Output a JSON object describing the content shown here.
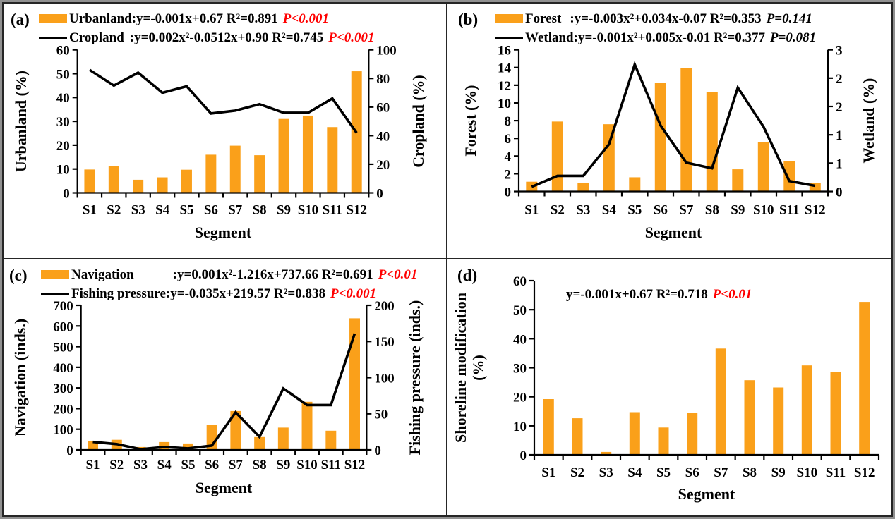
{
  "colors": {
    "bar": "#FAA01A",
    "line": "#000000",
    "red": "#FF0000",
    "black": "#000000"
  },
  "chart_data": [
    {
      "id": "a",
      "panel_label": "(a)",
      "type": "bar+line",
      "categories": [
        "S1",
        "S2",
        "S3",
        "S4",
        "S5",
        "S6",
        "S7",
        "S8",
        "S9",
        "S10",
        "S11",
        "S12"
      ],
      "xlabel": "Segment",
      "left_axis": {
        "label": "Urbanland (%)",
        "min": 0,
        "max": 60,
        "ticks": [
          0,
          10,
          20,
          30,
          40,
          50,
          60
        ]
      },
      "right_axis": {
        "label": "Cropland (%)",
        "min": 0,
        "max": 100,
        "ticks": [
          0,
          20,
          40,
          60,
          80,
          100
        ]
      },
      "legend": [
        {
          "swatch": "bar",
          "label": "Urbanland",
          "indent": 0,
          "equation": ":y=-0.001x+0.67 R²=0.891",
          "p": "P<0.001",
          "p_color": "#FF0000"
        },
        {
          "swatch": "line",
          "label": "Cropland",
          "indent": 8,
          "equation": ":y=0.002x²-0.0512x+0.90 R²=0.745",
          "p": "P<0.001",
          "p_color": "#FF0000"
        }
      ],
      "series": [
        {
          "name": "Urbanland",
          "type": "bar",
          "axis": "left",
          "values": [
            9.8,
            11.2,
            5.5,
            6.5,
            9.7,
            16.0,
            19.8,
            15.8,
            31.0,
            32.4,
            27.6,
            51.0
          ]
        },
        {
          "name": "Cropland",
          "type": "line",
          "axis": "right",
          "values": [
            86,
            75,
            84,
            70,
            74.5,
            55.5,
            57.5,
            62,
            56,
            56,
            66,
            42
          ]
        }
      ]
    },
    {
      "id": "b",
      "panel_label": "(b)",
      "type": "bar+line",
      "categories": [
        "S1",
        "S2",
        "S3",
        "S4",
        "S5",
        "S6",
        "S7",
        "S8",
        "S9",
        "S10",
        "S11",
        "S12"
      ],
      "xlabel": "Segment",
      "left_axis": {
        "label": "Forest (%)",
        "min": 0,
        "max": 16,
        "ticks": [
          0,
          2,
          4,
          6,
          8,
          10,
          12,
          14,
          16
        ]
      },
      "right_axis": {
        "label": "Wetland (%)",
        "min": 0,
        "max": 3,
        "ticks": [
          0,
          0.6,
          1.2,
          1.8,
          2.4,
          3.0
        ],
        "tick_labels": [
          "0",
          "1",
          "1",
          "2",
          "2",
          "3"
        ]
      },
      "legend": [
        {
          "swatch": "bar",
          "label": "Forest",
          "indent": 12,
          "equation": ":y=-0.003x²+0.034x-0.07 R²=0.353",
          "p": "P=0.141",
          "p_color": "#000000"
        },
        {
          "swatch": "line",
          "label": "Wetland",
          "indent": 0,
          "equation": ":y=-0.001x²+0.005x-0.01 R²=0.377",
          "p": "P=0.081",
          "p_color": "#000000"
        }
      ],
      "series": [
        {
          "name": "Forest",
          "type": "bar",
          "axis": "left",
          "values": [
            1.1,
            7.9,
            1.0,
            7.6,
            1.6,
            12.3,
            13.9,
            11.2,
            2.5,
            5.6,
            3.4,
            1.0
          ]
        },
        {
          "name": "Wetland",
          "type": "line",
          "axis": "right",
          "values": [
            0.1,
            0.33,
            0.33,
            1.0,
            2.69,
            1.4,
            0.61,
            0.49,
            2.2,
            1.37,
            0.22,
            0.12
          ]
        }
      ]
    },
    {
      "id": "c",
      "panel_label": "(c)",
      "type": "bar+line",
      "categories": [
        "S1",
        "S2",
        "S3",
        "S4",
        "S5",
        "S6",
        "S7",
        "S8",
        "S9",
        "S10",
        "S11",
        "S12"
      ],
      "xlabel": "Segment",
      "left_axis": {
        "label": "Navigation (inds.)",
        "min": 0,
        "max": 700,
        "ticks": [
          0,
          100,
          200,
          300,
          400,
          500,
          600,
          700
        ]
      },
      "right_axis": {
        "label": "Fishing pressure (inds.)",
        "min": 0,
        "max": 200,
        "ticks": [
          0,
          50,
          100,
          150,
          200
        ]
      },
      "legend": [
        {
          "swatch": "bar",
          "label": "Navigation",
          "indent": 55,
          "equation": ":y=0.001x²-1.216x+737.66 R²=0.691",
          "p": "P<0.01",
          "p_color": "#FF0000"
        },
        {
          "swatch": "line",
          "label": "Fishing pressure",
          "indent": 0,
          "equation": ":y=-0.035x+219.57 R²=0.838",
          "p": "P<0.001",
          "p_color": "#FF0000"
        }
      ],
      "series": [
        {
          "name": "Navigation",
          "type": "bar",
          "axis": "left",
          "values": [
            43,
            49,
            14,
            38,
            31,
            123,
            188,
            62,
            108,
            233,
            93,
            637
          ]
        },
        {
          "name": "Fishing pressure",
          "type": "line",
          "axis": "right",
          "values": [
            11,
            8,
            1,
            4,
            2,
            6,
            52,
            18,
            85,
            62,
            62,
            161
          ]
        }
      ]
    },
    {
      "id": "d",
      "panel_label": "(d)",
      "type": "bar",
      "categories": [
        "S1",
        "S2",
        "S3",
        "S4",
        "S5",
        "S6",
        "S7",
        "S8",
        "S9",
        "S10",
        "S11",
        "S12"
      ],
      "xlabel": "Segment",
      "left_axis": {
        "label": "Shoreline modification (%)",
        "label_lines": [
          "Shoreline modification",
          "(%)"
        ],
        "min": 0,
        "max": 60,
        "ticks": [
          0,
          10,
          20,
          30,
          40,
          50,
          60
        ]
      },
      "right_axis": null,
      "legend": [
        {
          "swatch": "none",
          "label": "",
          "indent": 0,
          "equation": "y=-0.001x+0.67 R²=0.718",
          "p": "P<0.01",
          "p_color": "#FF0000"
        }
      ],
      "series": [
        {
          "name": "Shoreline modification",
          "type": "bar",
          "axis": "left",
          "values": [
            19.2,
            12.6,
            1.0,
            14.7,
            9.4,
            14.5,
            36.6,
            25.7,
            23.2,
            30.8,
            28.5,
            52.7
          ]
        }
      ]
    }
  ]
}
